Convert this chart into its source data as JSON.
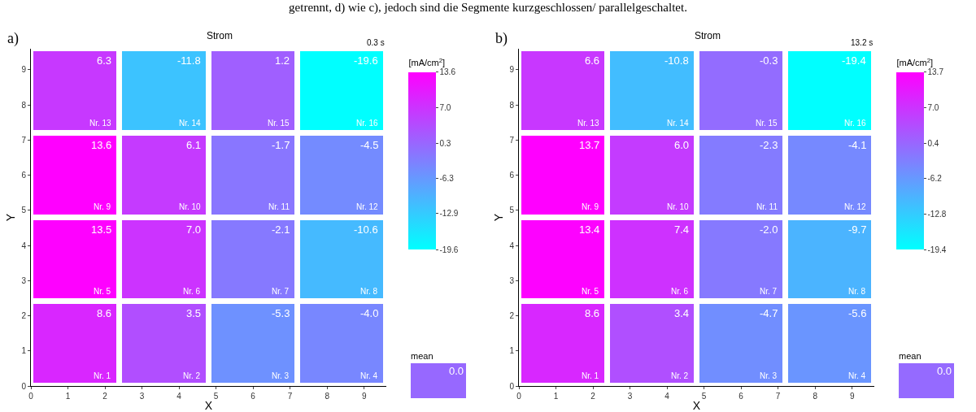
{
  "chart_data": [
    {
      "type": "heatmap",
      "title": "Strom",
      "subtitle": "0.3 s",
      "xlabel": "X",
      "ylabel": "Y",
      "clabel": "[mA/cm$^{2}$]",
      "xlim": [
        0,
        9.6
      ],
      "ylim": [
        0,
        9.6
      ],
      "xticks": [
        0,
        1,
        2,
        3,
        4,
        5,
        6,
        7,
        8,
        9
      ],
      "yticks": [
        0,
        1,
        2,
        3,
        4,
        5,
        6,
        7,
        8,
        9
      ],
      "cells": [
        [
          6.3,
          -11.8,
          1.2,
          -19.6
        ],
        [
          13.6,
          6.1,
          -1.7,
          -4.5
        ],
        [
          13.5,
          7.0,
          -2.1,
          -10.6
        ],
        [
          8.6,
          3.5,
          -5.3,
          -4.0
        ]
      ],
      "cell_labels": [
        [
          "6.3",
          "-11.8",
          "1.2",
          "-19.6"
        ],
        [
          "13.6",
          "6.1",
          "-1.7",
          "-4.5"
        ],
        [
          "13.5",
          "7.0",
          "-2.1",
          "-10.6"
        ],
        [
          "8.6",
          "3.5",
          "-5.3",
          "-4.0"
        ]
      ],
      "clim": [
        -19.6,
        13.6
      ],
      "cticks": [
        13.6,
        {
          "value": 7.0,
          "label": "7.0"
        },
        0.3,
        -6.3,
        -12.9,
        -19.6
      ],
      "annotations": [
        "a)",
        "getrennt, d) wie c), jedoch sind die Segmente kurzgeschlossen/ parallelgeschaltet.",
        "Nr. 13",
        "Nr. 14",
        "Nr. 15",
        "Nr. 16",
        "Nr. 9",
        "Nr. 10",
        "Nr. 11",
        "Nr. 12",
        "Nr. 5",
        "Nr. 6",
        "Nr. 7",
        "Nr. 8",
        "Nr. 1",
        "Nr. 2",
        "Nr. 3",
        "Nr. 4"
      ]
    },
    {
      "type": "other",
      "title": "mean",
      "values": [
        0.0
      ],
      "value_labels": [
        "0.0"
      ]
    },
    {
      "type": "heatmap",
      "title": "Strom",
      "subtitle": "13.2 s",
      "xlabel": "X",
      "ylabel": "Y",
      "clabel": "[mA/cm$^{2}$]",
      "xlim": [
        0,
        9.6
      ],
      "ylim": [
        0,
        9.6
      ],
      "xticks": [
        0,
        1,
        2,
        3,
        4,
        5,
        6,
        7,
        8,
        9
      ],
      "yticks": [
        0,
        1,
        2,
        3,
        4,
        5,
        6,
        7,
        8,
        9
      ],
      "cells": [
        [
          6.6,
          -10.8,
          -0.3,
          -19.4
        ],
        [
          13.7,
          6.0,
          -2.3,
          -4.1
        ],
        [
          13.4,
          7.4,
          -2.0,
          -9.7
        ],
        [
          8.6,
          3.4,
          -4.7,
          -5.6
        ]
      ],
      "cell_labels": [
        [
          "6.6",
          "-10.8",
          "-0.3",
          "-19.4"
        ],
        [
          "13.7",
          "6.0",
          "-2.3",
          "-4.1"
        ],
        [
          "13.4",
          "7.4",
          "-2.0",
          "-9.7"
        ],
        [
          "8.6",
          "3.4",
          "-4.7",
          "-5.6"
        ]
      ],
      "clim": [
        -19.4,
        13.7
      ],
      "cticks": [
        13.7,
        {
          "value": 7.0,
          "label": "7.0"
        },
        0.4,
        -6.2,
        -12.8,
        -19.4
      ],
      "annotations": [
        "b)",
        "Nr. 13",
        "Nr. 14",
        "Nr. 15",
        "Nr. 16",
        "Nr. 9",
        "Nr. 10",
        "Nr. 11",
        "Nr. 12",
        "Nr. 5",
        "Nr. 6",
        "Nr. 7",
        "Nr. 8",
        "Nr. 1",
        "Nr. 2",
        "Nr. 3",
        "Nr. 4"
      ]
    },
    {
      "type": "other",
      "title": "mean",
      "values": [
        0.0
      ],
      "value_labels": [
        "0.0"
      ]
    }
  ]
}
